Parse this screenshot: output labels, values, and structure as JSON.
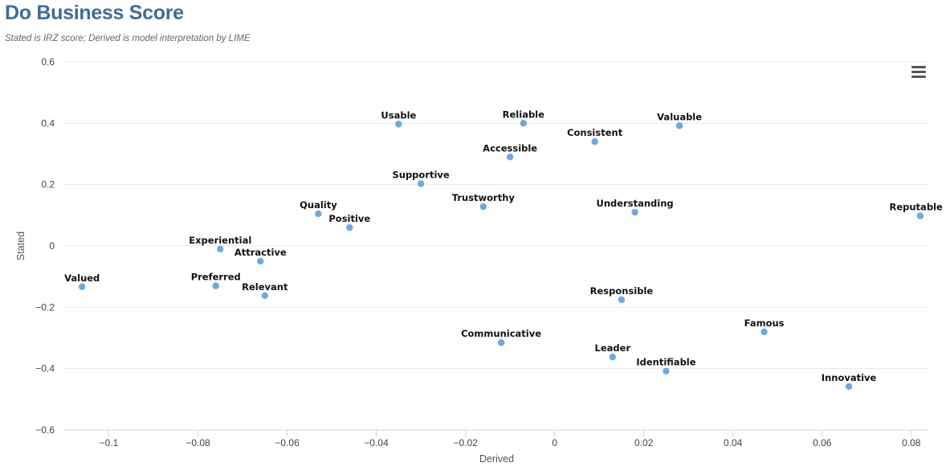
{
  "header": {
    "title": "Do Business Score",
    "subtitle": "Stated is IRZ score; Derived is model interpretation by LIME"
  },
  "toolbar": {
    "menu_icon": "hamburger-menu-icon"
  },
  "colors": {
    "point": "#6fa8dc",
    "grid": "#e6e6e6",
    "title": "#3f6c98"
  },
  "chart_data": {
    "type": "scatter",
    "xlabel": "Derived",
    "ylabel": "Stated",
    "xlim": [
      -0.11,
      0.084
    ],
    "ylim": [
      -0.6,
      0.6
    ],
    "x_ticks": [
      -0.1,
      -0.08,
      -0.06,
      -0.04,
      -0.02,
      0,
      0.02,
      0.04,
      0.06,
      0.08
    ],
    "x_tick_labels": [
      "−0.1",
      "−0.08",
      "−0.06",
      "−0.04",
      "−0.02",
      "0",
      "0.02",
      "0.04",
      "0.06",
      "0.08"
    ],
    "y_ticks": [
      0.6,
      0.4,
      0.2,
      0,
      -0.2,
      -0.4,
      -0.6
    ],
    "y_tick_labels": [
      "0.6",
      "0.4",
      "0.2",
      "0",
      "−0.2",
      "−0.4",
      "−0.6"
    ],
    "grid": "horizontal",
    "points": [
      {
        "label": "Usable",
        "x": -0.035,
        "y": 0.397
      },
      {
        "label": "Reliable",
        "x": -0.007,
        "y": 0.4
      },
      {
        "label": "Consistent",
        "x": 0.009,
        "y": 0.34
      },
      {
        "label": "Valuable",
        "x": 0.028,
        "y": 0.392
      },
      {
        "label": "Accessible",
        "x": -0.01,
        "y": 0.29
      },
      {
        "label": "Supportive",
        "x": -0.03,
        "y": 0.203
      },
      {
        "label": "Trustworthy",
        "x": -0.016,
        "y": 0.128
      },
      {
        "label": "Understanding",
        "x": 0.018,
        "y": 0.11
      },
      {
        "label": "Reputable",
        "x": 0.082,
        "y": 0.098
      },
      {
        "label": "Quality",
        "x": -0.053,
        "y": 0.105
      },
      {
        "label": "Positive",
        "x": -0.046,
        "y": 0.06
      },
      {
        "label": "Experiential",
        "x": -0.075,
        "y": -0.01
      },
      {
        "label": "Attractive",
        "x": -0.066,
        "y": -0.05
      },
      {
        "label": "Valued",
        "x": -0.106,
        "y": -0.133
      },
      {
        "label": "Preferred",
        "x": -0.076,
        "y": -0.13
      },
      {
        "label": "Relevant",
        "x": -0.065,
        "y": -0.162
      },
      {
        "label": "Responsible",
        "x": 0.015,
        "y": -0.175
      },
      {
        "label": "Communicative",
        "x": -0.012,
        "y": -0.315
      },
      {
        "label": "Famous",
        "x": 0.047,
        "y": -0.28
      },
      {
        "label": "Leader",
        "x": 0.013,
        "y": -0.362
      },
      {
        "label": "Identifiable",
        "x": 0.025,
        "y": -0.408
      },
      {
        "label": "Innovative",
        "x": 0.066,
        "y": -0.458
      }
    ]
  }
}
